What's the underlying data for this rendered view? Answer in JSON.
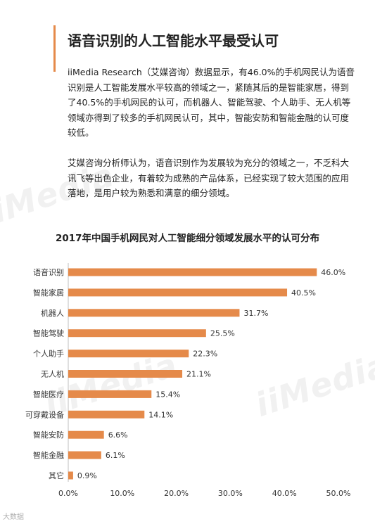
{
  "heading": "语音识别的人工智能水平最受认可",
  "paragraphs": [
    "iiMedia Research（艾媒咨询）数据显示，有46.0%的手机网民认为语音识别是人工智能发展水平较高的领域之一，紧随其后的是智能家居，得到了40.5%的手机网民的认可，而机器人、智能驾驶、个人助手、无人机等领域亦得到了较多的手机网民认可，其中，智能安防和智能金融的认可度较低。",
    "艾媒咨询分析师认为，语音识别作为发展较为充分的领域之一，不乏科大讯飞等出色企业，有着较为成熟的产品体系，已经实现了较大范围的应用落地，是用户较为熟悉和满意的细分领域。"
  ],
  "watermark_text": "iiMedia",
  "footer_watermark": "大数据",
  "colors": {
    "bar": "#e58a4a",
    "accent": "#e58a4a"
  },
  "chart_data": {
    "type": "bar",
    "orientation": "horizontal",
    "title": "2017年中国手机网民对人工智能细分领域发展水平的认可分布",
    "categories": [
      "语音识别",
      "智能家居",
      "机器人",
      "智能驾驶",
      "个人助手",
      "无人机",
      "智能医疗",
      "可穿戴设备",
      "智能安防",
      "智能金融",
      "其它"
    ],
    "values": [
      46.0,
      40.5,
      31.7,
      25.5,
      22.3,
      21.1,
      15.4,
      14.1,
      6.6,
      6.1,
      0.9
    ],
    "value_labels": [
      "46.0%",
      "40.5%",
      "31.7%",
      "25.5%",
      "22.3%",
      "21.1%",
      "15.4%",
      "14.1%",
      "6.6%",
      "6.1%",
      "0.9%"
    ],
    "xlim": [
      0,
      50
    ],
    "xticks": [
      "0.0%",
      "10.0%",
      "20.0%",
      "30.0%",
      "40.0%",
      "50.0%"
    ],
    "grid": false
  }
}
